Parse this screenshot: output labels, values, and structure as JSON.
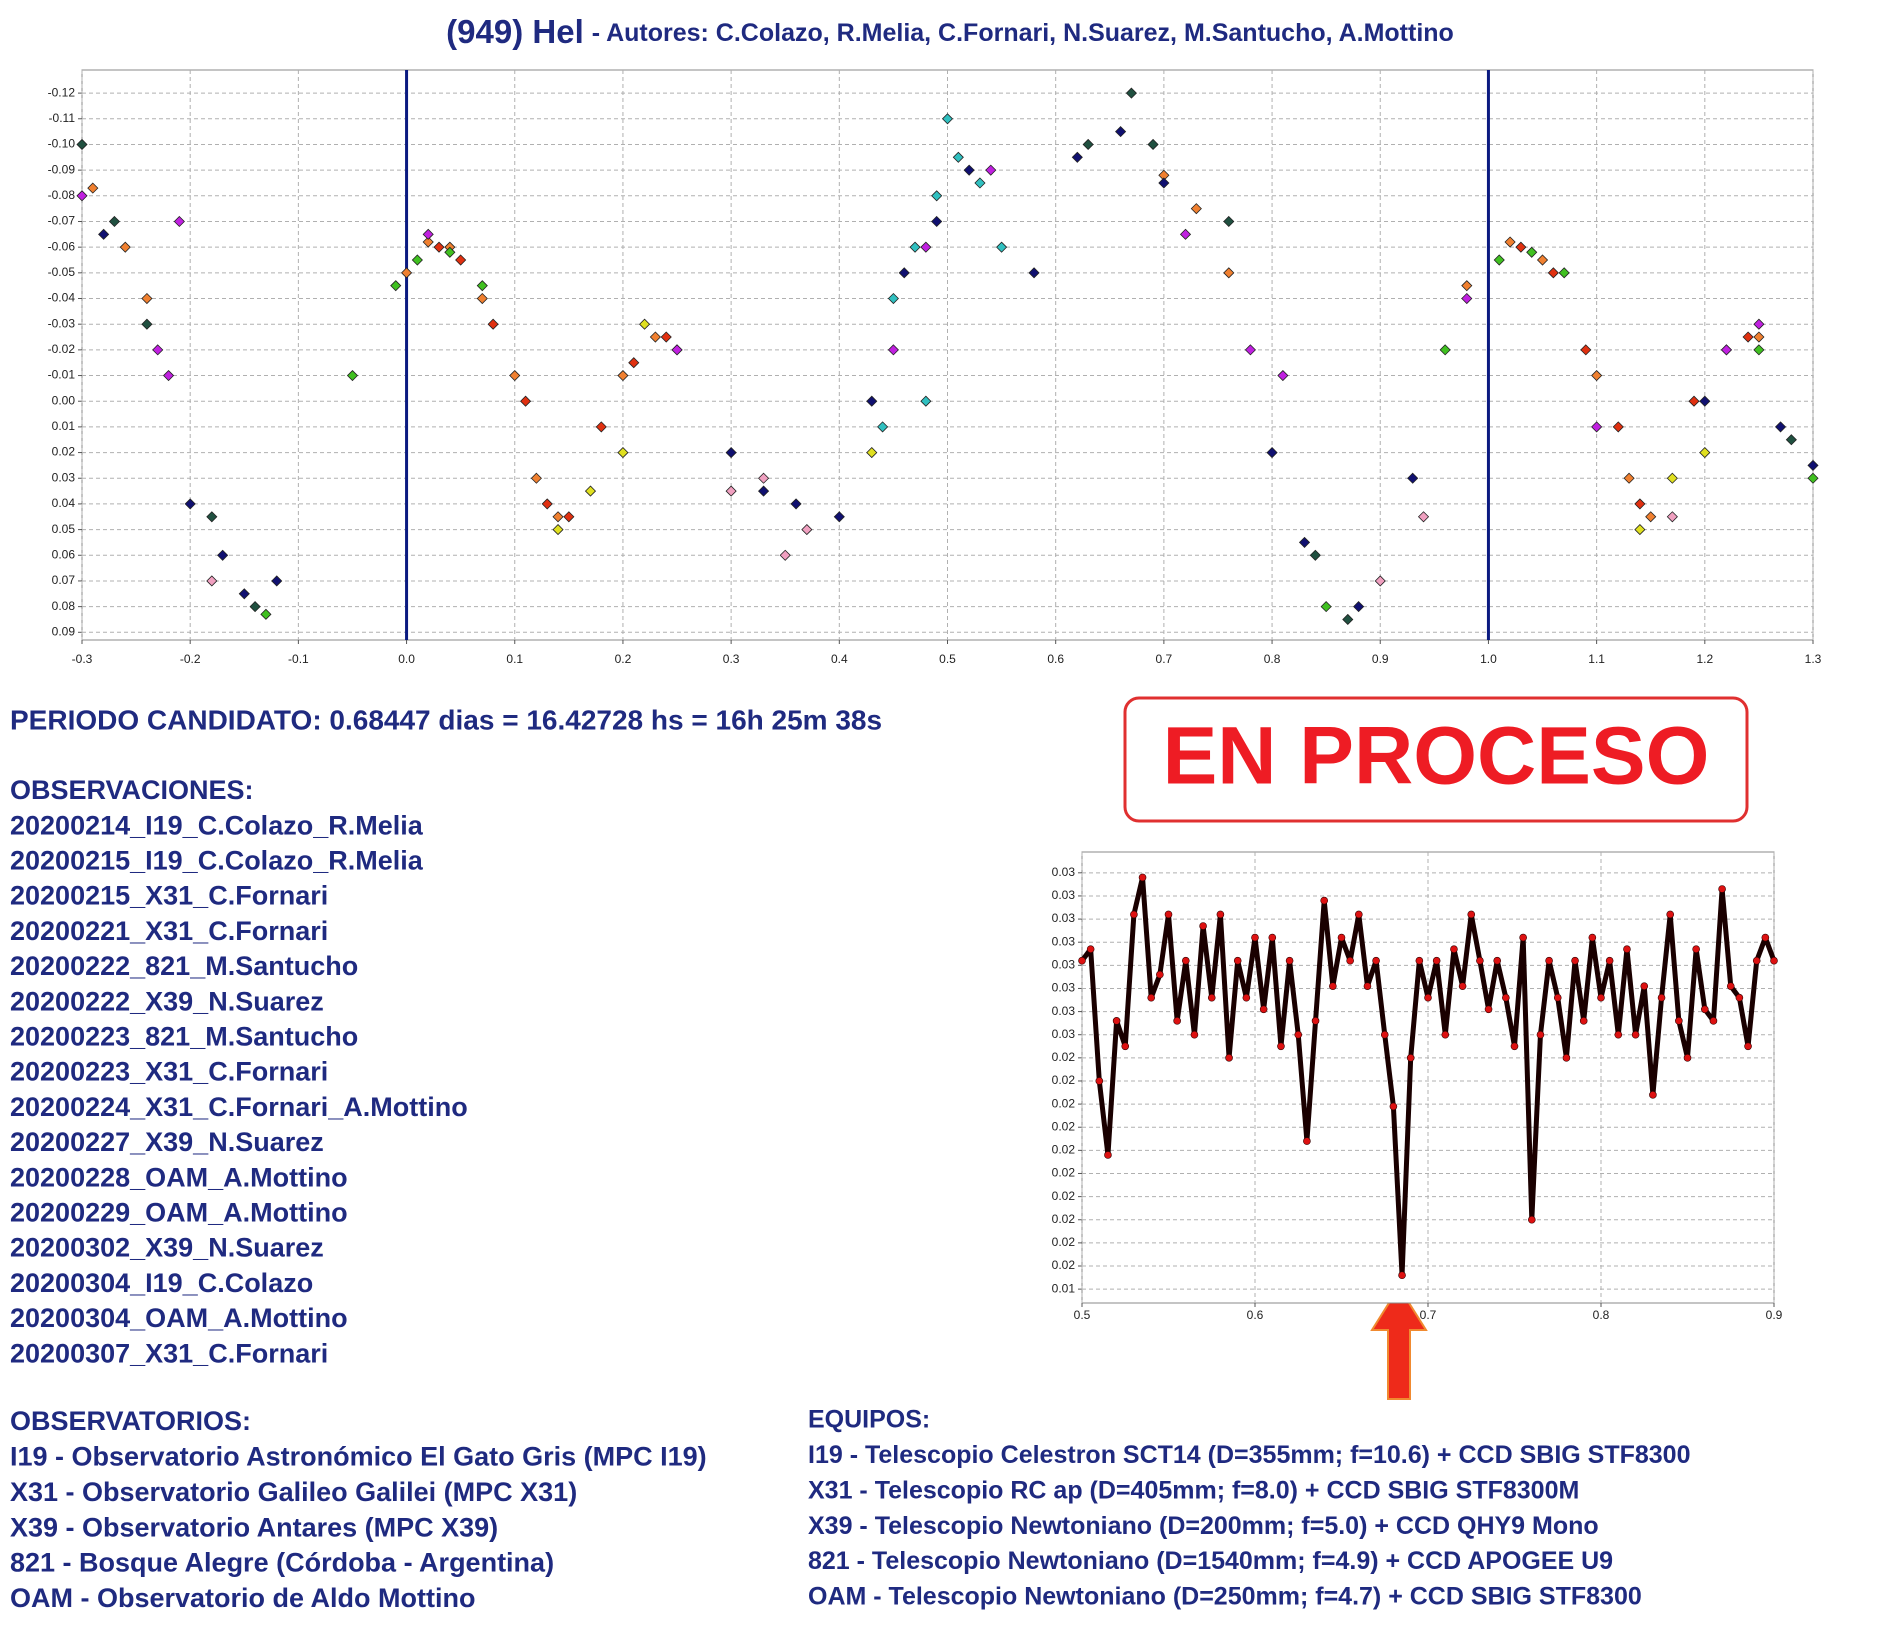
{
  "chart_data": [
    {
      "type": "scatter",
      "title": "(949) Hel",
      "subtitle": "- Autores: C.Colazo, R.Melia, C.Fornari, N.Suarez, M.Santucho, A.Mottino",
      "xlim": [
        -0.3,
        1.3
      ],
      "ylim": [
        0.093,
        -0.129
      ],
      "xticks": [
        -0.3,
        -0.2,
        -0.1,
        {
          "value": 0,
          "label": "0.0"
        },
        0.1,
        0.2,
        0.3,
        0.4,
        0.5,
        0.6,
        0.7,
        0.8,
        0.9,
        {
          "value": 1,
          "label": "1.0"
        },
        1.1,
        1.2,
        1.3
      ],
      "yticks": [
        -0.12,
        -0.11,
        {
          "value": -0.1,
          "label": "-0.10"
        },
        -0.09,
        -0.08,
        -0.07,
        -0.06,
        -0.05,
        -0.04,
        -0.03,
        -0.02,
        -0.01,
        {
          "value": 0,
          "label": "0.00"
        },
        0.01,
        0.02,
        0.03,
        0.04,
        0.05,
        0.06,
        0.07,
        0.08,
        0.09
      ],
      "grid": true,
      "vlines": [
        0,
        1
      ],
      "vline_color": "#0a1a80",
      "series": [
        {
          "color": "#f08030",
          "x": [
            -0.29,
            -0.26,
            -0.24,
            0.0,
            0.02,
            0.04,
            0.07,
            0.1,
            0.12,
            0.14,
            0.2,
            0.23,
            0.7,
            0.73,
            0.76,
            0.98,
            1.02,
            1.05,
            1.1,
            1.13,
            1.15,
            1.22,
            1.25
          ],
          "values": [
            -0.083,
            -0.06,
            -0.04,
            -0.05,
            -0.062,
            -0.06,
            -0.04,
            -0.01,
            0.03,
            0.045,
            -0.01,
            -0.025,
            -0.088,
            -0.075,
            -0.05,
            -0.045,
            -0.062,
            -0.055,
            -0.01,
            0.03,
            0.045,
            -0.02,
            -0.025
          ]
        },
        {
          "color": "#e03010",
          "x": [
            0.03,
            0.05,
            0.08,
            0.11,
            0.13,
            0.15,
            0.18,
            0.21,
            0.24,
            1.03,
            1.06,
            1.09,
            1.12,
            1.14,
            1.19,
            1.24
          ],
          "values": [
            -0.06,
            -0.055,
            -0.03,
            0.0,
            0.04,
            0.045,
            0.01,
            -0.015,
            -0.025,
            -0.06,
            -0.05,
            -0.02,
            0.01,
            0.04,
            0.0,
            -0.025
          ]
        },
        {
          "color": "#40c020",
          "x": [
            -0.01,
            0.01,
            0.04,
            0.07,
            -0.05,
            0.25,
            0.85,
            0.96,
            1.01,
            1.04,
            1.07,
            1.25,
            1.3,
            -0.13
          ],
          "values": [
            -0.045,
            -0.055,
            -0.058,
            -0.045,
            -0.01,
            -0.02,
            0.08,
            -0.02,
            -0.055,
            -0.058,
            -0.05,
            -0.02,
            0.03,
            0.083
          ]
        },
        {
          "color": "#c020e0",
          "x": [
            -0.3,
            -0.21,
            -0.23,
            -0.22,
            0.02,
            0.25,
            0.45,
            0.48,
            0.54,
            0.72,
            0.78,
            0.81,
            0.98,
            1.22,
            1.25,
            1.1
          ],
          "values": [
            -0.08,
            -0.07,
            -0.02,
            -0.01,
            -0.065,
            -0.02,
            -0.02,
            -0.06,
            -0.09,
            -0.065,
            -0.02,
            -0.01,
            -0.04,
            -0.02,
            -0.03,
            0.01
          ]
        },
        {
          "color": "#101070",
          "x": [
            -0.28,
            -0.2,
            -0.17,
            -0.15,
            -0.12,
            0.3,
            0.33,
            0.36,
            0.4,
            0.43,
            0.46,
            0.49,
            0.52,
            0.58,
            0.62,
            0.66,
            0.7,
            0.8,
            0.83,
            0.88,
            0.93,
            1.2,
            1.27,
            1.3
          ],
          "values": [
            -0.065,
            0.04,
            0.06,
            0.075,
            0.07,
            0.02,
            0.035,
            0.04,
            0.045,
            0.0,
            -0.05,
            -0.07,
            -0.09,
            -0.05,
            -0.095,
            -0.105,
            -0.085,
            0.02,
            0.055,
            0.08,
            0.03,
            0.0,
            0.01,
            0.025
          ]
        },
        {
          "color": "#30c0c0",
          "x": [
            0.47,
            0.49,
            0.5,
            0.51,
            0.53,
            0.55,
            0.45,
            0.48,
            0.44
          ],
          "values": [
            -0.06,
            -0.08,
            -0.11,
            -0.095,
            -0.085,
            -0.06,
            -0.04,
            0.0,
            0.01
          ]
        },
        {
          "color": "#e0e020",
          "x": [
            0.14,
            0.17,
            0.2,
            0.22,
            0.43,
            1.14,
            1.17,
            1.2
          ],
          "values": [
            0.05,
            0.035,
            0.02,
            -0.03,
            0.02,
            0.05,
            0.03,
            0.02
          ]
        },
        {
          "color": "#205040",
          "x": [
            -0.3,
            -0.27,
            -0.24,
            -0.18,
            -0.14,
            0.63,
            0.67,
            0.69,
            0.76,
            0.84,
            0.87,
            1.28
          ],
          "values": [
            -0.1,
            -0.07,
            -0.03,
            0.045,
            0.08,
            -0.1,
            -0.12,
            -0.1,
            -0.07,
            0.06,
            0.085,
            0.015
          ]
        },
        {
          "color": "#f0a0c0",
          "x": [
            -0.18,
            0.3,
            0.33,
            0.35,
            0.37,
            0.9,
            0.94,
            1.17
          ],
          "values": [
            0.07,
            0.035,
            0.03,
            0.06,
            0.05,
            0.07,
            0.045,
            0.045
          ]
        }
      ]
    },
    {
      "type": "line",
      "xlim": [
        0.5,
        0.9
      ],
      "ylim": [
        0.0138,
        0.0333
      ],
      "xticks": [
        0.5,
        0.6,
        0.7,
        0.8,
        0.9
      ],
      "yticks": [
        {
          "value": 0.0144,
          "label": "0.01"
        },
        {
          "value": 0.0154,
          "label": "0.02"
        },
        {
          "value": 0.0164,
          "label": "0.02"
        },
        {
          "value": 0.0174,
          "label": "0.02"
        },
        {
          "value": 0.0184,
          "label": "0.02"
        },
        {
          "value": 0.0194,
          "label": "0.02"
        },
        {
          "value": 0.0204,
          "label": "0.02"
        },
        {
          "value": 0.0214,
          "label": "0.02"
        },
        {
          "value": 0.0224,
          "label": "0.02"
        },
        {
          "value": 0.0234,
          "label": "0.02"
        },
        {
          "value": 0.0244,
          "label": "0.02"
        },
        {
          "value": 0.0254,
          "label": "0.03"
        },
        {
          "value": 0.0264,
          "label": "0.03"
        },
        {
          "value": 0.0274,
          "label": "0.03"
        },
        {
          "value": 0.0284,
          "label": "0.03"
        },
        {
          "value": 0.0294,
          "label": "0.03"
        },
        {
          "value": 0.0304,
          "label": "0.03"
        },
        {
          "value": 0.0314,
          "label": "0.03"
        },
        {
          "value": 0.0324,
          "label": "0.03"
        }
      ],
      "grid": true,
      "x": [
        0.5,
        0.505,
        0.51,
        0.515,
        0.52,
        0.525,
        0.53,
        0.535,
        0.54,
        0.545,
        0.55,
        0.555,
        0.56,
        0.565,
        0.57,
        0.575,
        0.58,
        0.585,
        0.59,
        0.595,
        0.6,
        0.605,
        0.61,
        0.615,
        0.62,
        0.625,
        0.63,
        0.635,
        0.64,
        0.645,
        0.65,
        0.655,
        0.66,
        0.665,
        0.67,
        0.675,
        0.68,
        0.685,
        0.69,
        0.695,
        0.7,
        0.705,
        0.71,
        0.715,
        0.72,
        0.725,
        0.73,
        0.735,
        0.74,
        0.745,
        0.75,
        0.755,
        0.76,
        0.765,
        0.77,
        0.775,
        0.78,
        0.785,
        0.79,
        0.795,
        0.8,
        0.805,
        0.81,
        0.815,
        0.82,
        0.825,
        0.83,
        0.835,
        0.84,
        0.845,
        0.85,
        0.855,
        0.86,
        0.865,
        0.87,
        0.875,
        0.88,
        0.885,
        0.89,
        0.895,
        0.9
      ],
      "series": [
        {
          "color": "#1a0000",
          "marker_color": "#dd1111",
          "values": [
            0.0286,
            0.0291,
            0.0234,
            0.0202,
            0.026,
            0.0249,
            0.0306,
            0.0322,
            0.027,
            0.028,
            0.0306,
            0.026,
            0.0286,
            0.0254,
            0.0301,
            0.027,
            0.0306,
            0.0244,
            0.0286,
            0.027,
            0.0296,
            0.0265,
            0.0296,
            0.0249,
            0.0286,
            0.0254,
            0.0208,
            0.026,
            0.0312,
            0.0275,
            0.0296,
            0.0286,
            0.0306,
            0.0275,
            0.0286,
            0.0254,
            0.0223,
            0.015,
            0.0244,
            0.0286,
            0.027,
            0.0286,
            0.0254,
            0.0291,
            0.0275,
            0.0306,
            0.0286,
            0.0265,
            0.0286,
            0.027,
            0.0249,
            0.0296,
            0.0174,
            0.0254,
            0.0286,
            0.027,
            0.0244,
            0.0286,
            0.026,
            0.0296,
            0.027,
            0.0286,
            0.0254,
            0.0291,
            0.0254,
            0.0275,
            0.0228,
            0.027,
            0.0306,
            0.026,
            0.0244,
            0.0291,
            0.0265,
            0.026,
            0.0317,
            0.0275,
            0.027,
            0.0249,
            0.0286,
            0.0296,
            0.0286
          ]
        }
      ]
    }
  ],
  "periodo": "PERIODO CANDIDATO: 0.68447 dias = 16.42728 hs = 16h 25m 38s",
  "estado": "EN PROCESO",
  "observaciones": {
    "title": "OBSERVACIONES:",
    "items": [
      "20200214_I19_C.Colazo_R.Melia",
      "20200215_I19_C.Colazo_R.Melia",
      "20200215_X31_C.Fornari",
      "20200221_X31_C.Fornari",
      "20200222_821_M.Santucho",
      "20200222_X39_N.Suarez",
      "20200223_821_M.Santucho",
      "20200223_X31_C.Fornari",
      "20200224_X31_C.Fornari_A.Mottino",
      "20200227_X39_N.Suarez",
      "20200228_OAM_A.Mottino",
      "20200229_OAM_A.Mottino",
      "20200302_X39_N.Suarez",
      "20200304_I19_C.Colazo",
      "20200304_OAM_A.Mottino",
      "20200307_X31_C.Fornari"
    ]
  },
  "observatorios": {
    "title": "OBSERVATORIOS:",
    "items": [
      "I19 - Observatorio Astronómico El Gato Gris (MPC I19)",
      "X31 - Observatorio Galileo Galilei (MPC X31)",
      "X39 - Observatorio Antares (MPC X39)",
      "821 - Bosque Alegre (Córdoba - Argentina)",
      "OAM - Observatorio de Aldo Mottino"
    ]
  },
  "equipos": {
    "title": "EQUIPOS:",
    "items": [
      "I19 - Telescopio Celestron SCT14 (D=355mm; f=10.6) + CCD SBIG STF8300",
      "X31 - Telescopio RC ap (D=405mm; f=8.0) + CCD SBIG STF8300M",
      "X39 - Telescopio Newtoniano (D=200mm; f=5.0) + CCD QHY9 Mono",
      "821 - Telescopio  Newtoniano (D=1540mm; f=4.9) + CCD APOGEE U9",
      "OAM - Telescopio Newtoniano (D=250mm; f=4.7) + CCD SBIG STF8300"
    ]
  }
}
